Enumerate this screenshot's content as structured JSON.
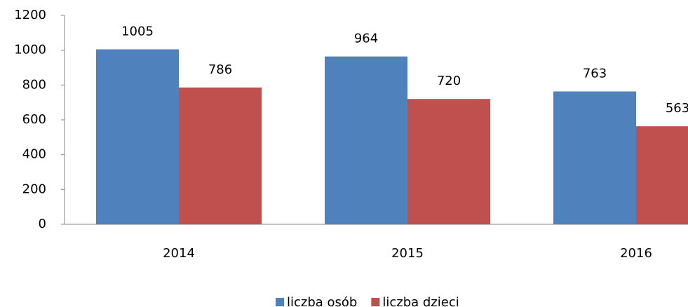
{
  "chart_data": {
    "type": "bar",
    "categories": [
      "2014",
      "2015",
      "2016"
    ],
    "series": [
      {
        "name": "liczba osób",
        "color": "#4f81bd",
        "values": [
          1005,
          964,
          763
        ]
      },
      {
        "name": "liczba dzieci",
        "color": "#c0504d",
        "values": [
          786,
          720,
          563
        ]
      }
    ],
    "ylim": [
      0,
      1200
    ],
    "yticks": [
      0,
      200,
      400,
      600,
      800,
      1000,
      1200
    ],
    "grid": false,
    "legend": "bottom"
  }
}
